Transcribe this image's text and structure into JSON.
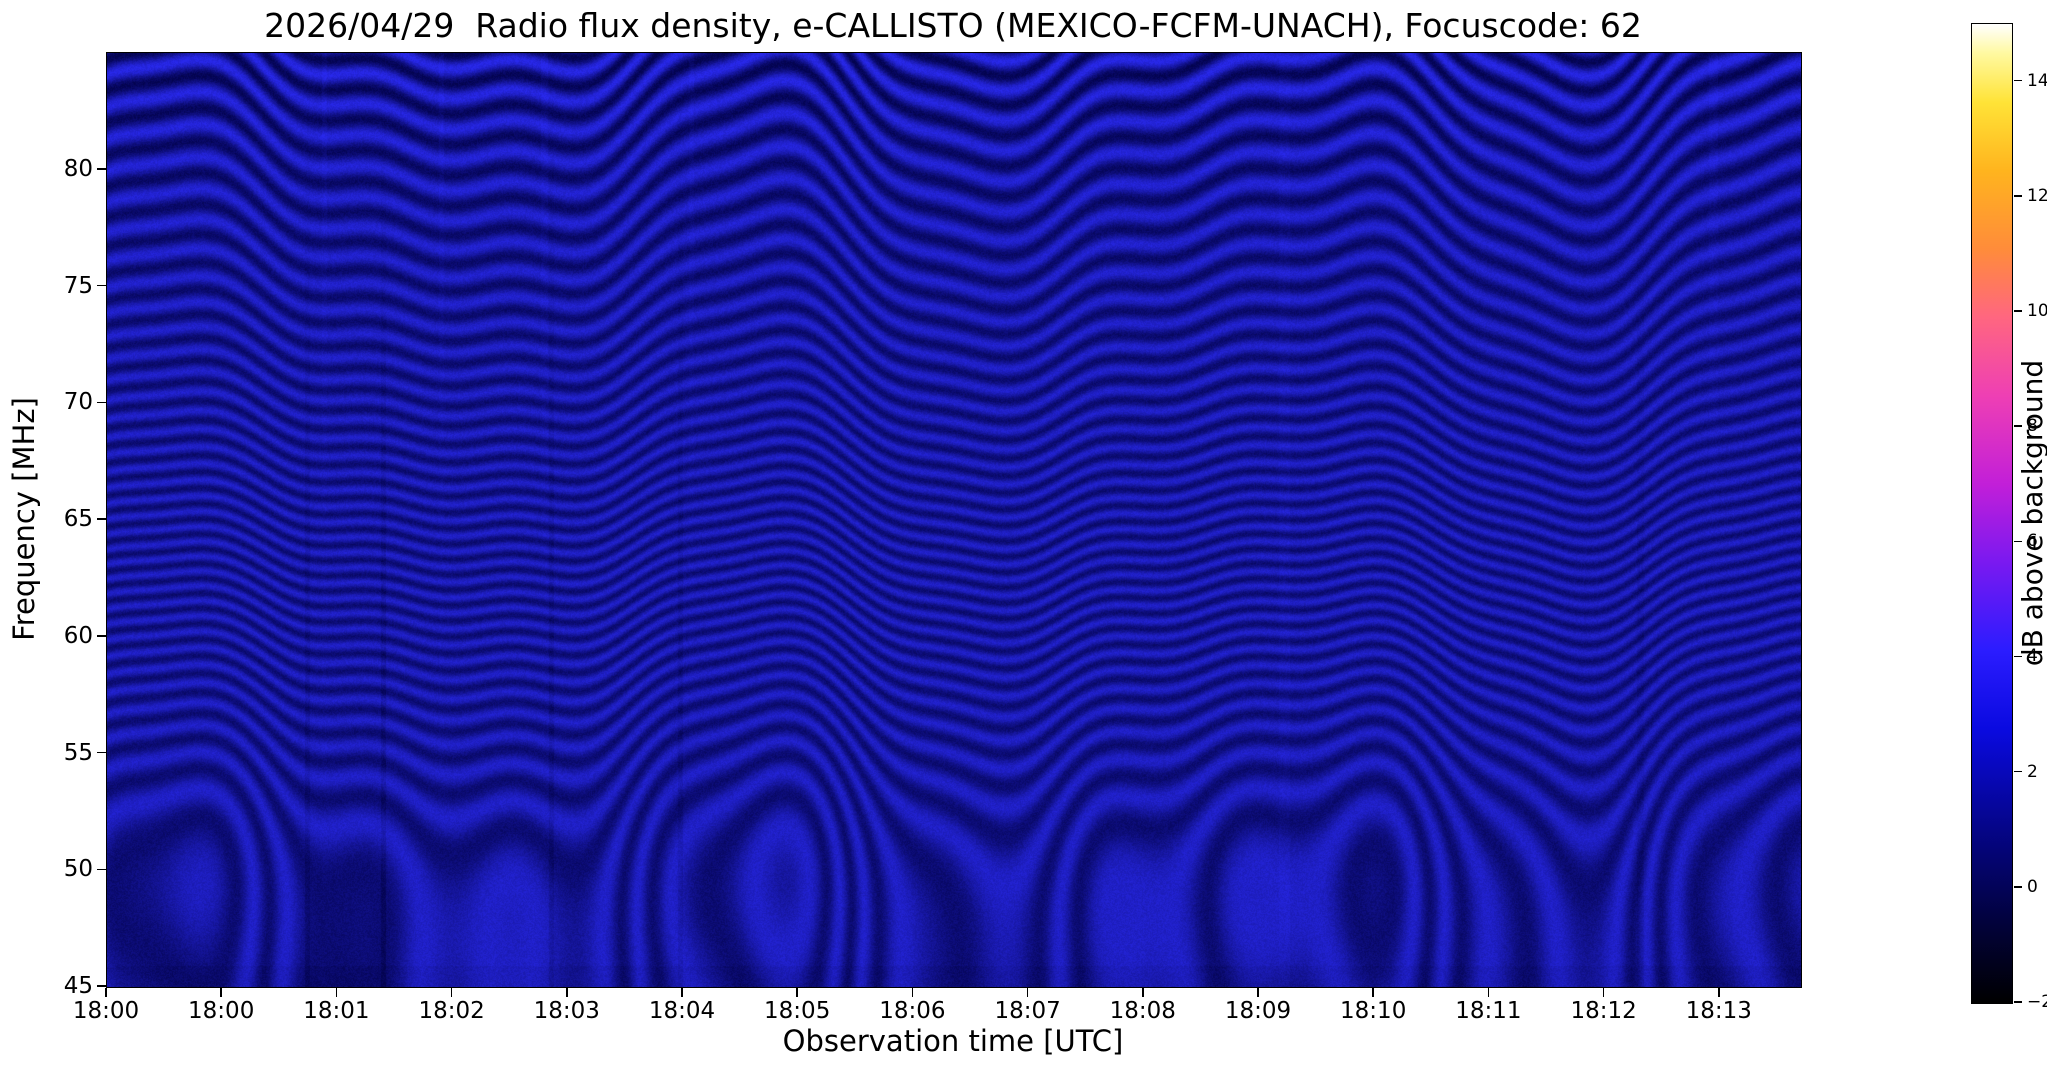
{
  "chart_data": {
    "type": "heatmap",
    "title": "2026/04/29  Radio flux density, e-CALLISTO (MEXICO-FCFM-UNACH), Focuscode: 62",
    "xlabel": "Observation time [UTC]",
    "ylabel": "Frequency [MHz]",
    "x_tick_labels": [
      "18:00",
      "18:00",
      "18:01",
      "18:02",
      "18:03",
      "18:04",
      "18:05",
      "18:06",
      "18:07",
      "18:08",
      "18:09",
      "18:10",
      "18:11",
      "18:12",
      "18:13"
    ],
    "y_ticks": [
      45,
      50,
      55,
      60,
      65,
      70,
      75,
      80
    ],
    "ylim": [
      45,
      85
    ],
    "x_range": [
      "18:00",
      "18:14"
    ],
    "grid": false,
    "legend": "none",
    "content_summary": "Quiet-Sun e-CALLISTO dynamic radio spectrum: nearly uniform dark-blue background near 0 dB above background, overlaid with slowly undulating horizontal interference fringes (ripple bands) of roughly +/-1 dB across 45-85 MHz; stronger fringe contrast above ~75 MHz; a few faint vertical streaks near 18:01.5, 18:03, 18:04 and 18:12.7; no solar radio burst features visible.",
    "background_level_dB": 0,
    "fringe_amplitude_dB": 1,
    "colorbar": {
      "label": "dB above background",
      "ticks": [
        -2,
        0,
        2,
        4,
        6,
        8,
        10,
        12,
        14
      ],
      "range": [
        -2,
        15
      ],
      "colormap": "gnuplot2-like (black-blue-violet-magenta-orange-yellow-white)",
      "stops": [
        {
          "pos": 0.0,
          "color": "#000000"
        },
        {
          "pos": 0.08,
          "color": "#02023a"
        },
        {
          "pos": 0.18,
          "color": "#05058a"
        },
        {
          "pos": 0.28,
          "color": "#0a0ae0"
        },
        {
          "pos": 0.36,
          "color": "#2b1cff"
        },
        {
          "pos": 0.45,
          "color": "#7a19f0"
        },
        {
          "pos": 0.53,
          "color": "#c21fd8"
        },
        {
          "pos": 0.62,
          "color": "#ee3fb4"
        },
        {
          "pos": 0.7,
          "color": "#ff6680"
        },
        {
          "pos": 0.77,
          "color": "#ff8c3a"
        },
        {
          "pos": 0.85,
          "color": "#ffb41e"
        },
        {
          "pos": 0.92,
          "color": "#ffe337"
        },
        {
          "pos": 0.97,
          "color": "#fff9a0"
        },
        {
          "pos": 1.0,
          "color": "#ffffff"
        }
      ]
    },
    "style_colors": {
      "plot_background_base": "#0a0a96",
      "fringe_dark": "#04045a",
      "fringe_bright": "#2424e4",
      "axes_color": "#000000",
      "figure_background": "#ffffff"
    }
  }
}
